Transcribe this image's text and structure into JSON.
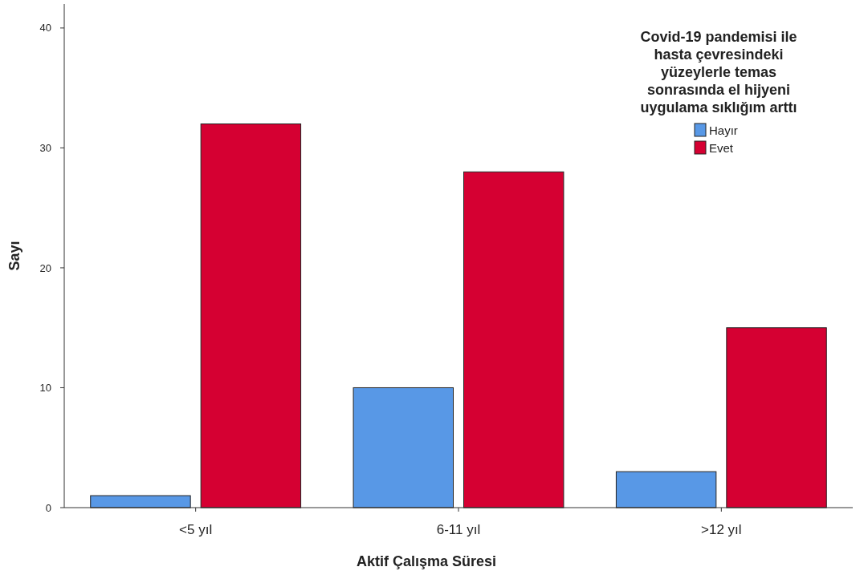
{
  "chart_data": {
    "type": "bar",
    "xlabel": "Aktif Çalışma Süresi",
    "ylabel": "Sayı",
    "legend_title": "Covid-19 pandemisi ile hasta çevresindeki yüzeylerle temas sonrasında el hijyeni uygulama sıklığım arttı",
    "categories": [
      "<5 yıl",
      "6-11 yıl",
      ">12 yıl"
    ],
    "series": [
      {
        "name": "Hayır",
        "color": "#5898e6",
        "values": [
          1,
          10,
          3
        ]
      },
      {
        "name": "Evet",
        "color": "#d50032",
        "values": [
          32,
          28,
          15
        ]
      }
    ],
    "ylim": [
      0,
      42
    ],
    "yticks": [
      0,
      10,
      20,
      30,
      40
    ],
    "grid": false,
    "legend": "top right"
  }
}
